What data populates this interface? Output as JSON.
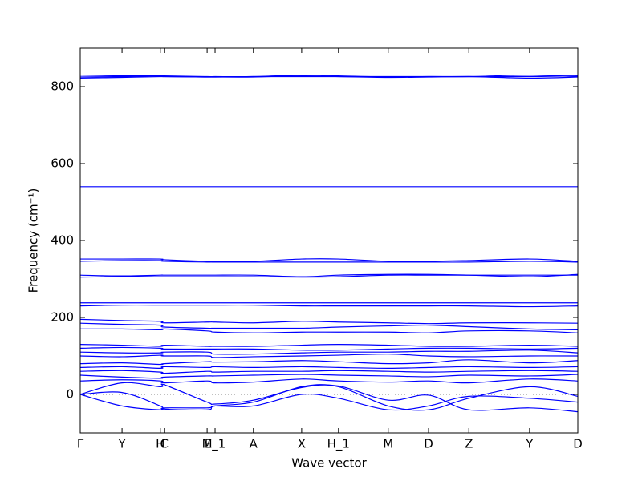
{
  "chart_data": {
    "type": "bands",
    "xlabel": "Wave vector",
    "ylabel": "Frequency (cm⁻¹)",
    "color": "#0000ff",
    "xlim": [
      0,
      1
    ],
    "ylim": [
      -100,
      900
    ],
    "yticks": [
      0,
      200,
      400,
      600,
      800
    ],
    "xticks": [
      {
        "value": 0,
        "label": "Γ"
      },
      {
        "value": 0.084,
        "label": "Y"
      },
      {
        "value": 0.161,
        "label": "H"
      },
      {
        "value": 0.169,
        "label": "C"
      },
      {
        "value": 0.255,
        "label": "M"
      },
      {
        "value": 0.271,
        "label": "E_1"
      },
      {
        "value": 0.348,
        "label": "A"
      },
      {
        "value": 0.445,
        "label": "X"
      },
      {
        "value": 0.519,
        "label": "H_1"
      },
      {
        "value": 0.619,
        "label": "M"
      },
      {
        "value": 0.7,
        "label": "D"
      },
      {
        "value": 0.781,
        "label": "Z"
      },
      {
        "value": 0.903,
        "label": "Y"
      },
      {
        "value": 1,
        "label": "D"
      }
    ],
    "zero_line": true,
    "x": [
      0,
      0.084,
      0.161,
      0.169,
      0.255,
      0.271,
      0.348,
      0.445,
      0.519,
      0.619,
      0.7,
      0.781,
      0.903,
      1
    ],
    "bands": [
      [
        830,
        828,
        828,
        828,
        826,
        826,
        826,
        830,
        828,
        825,
        826,
        826,
        830,
        826
      ],
      [
        825,
        826,
        828,
        826,
        825,
        825,
        825,
        828,
        826,
        824,
        825,
        826,
        822,
        825
      ],
      [
        822,
        824,
        826,
        826,
        825,
        825,
        826,
        826,
        826,
        826,
        826,
        826,
        826,
        828
      ],
      [
        540,
        540,
        540,
        540,
        540,
        540,
        540,
        540,
        540,
        540,
        540,
        540,
        540,
        540
      ],
      [
        352,
        352,
        352,
        350,
        346,
        346,
        346,
        352,
        352,
        346,
        346,
        348,
        352,
        346
      ],
      [
        346,
        348,
        348,
        346,
        344,
        344,
        344,
        344,
        344,
        344,
        344,
        344,
        346,
        344
      ],
      [
        310,
        308,
        310,
        310,
        310,
        310,
        310,
        306,
        310,
        312,
        312,
        310,
        306,
        312
      ],
      [
        305,
        306,
        306,
        306,
        306,
        306,
        306,
        305,
        306,
        310,
        310,
        310,
        310,
        310
      ],
      [
        238,
        238,
        238,
        238,
        238,
        238,
        238,
        238,
        238,
        238,
        238,
        238,
        238,
        238
      ],
      [
        230,
        232,
        232,
        232,
        232,
        232,
        232,
        230,
        230,
        230,
        230,
        230,
        228,
        230
      ],
      [
        195,
        192,
        190,
        186,
        188,
        188,
        186,
        190,
        188,
        186,
        184,
        186,
        186,
        185
      ],
      [
        185,
        182,
        180,
        175,
        172,
        172,
        172,
        172,
        175,
        178,
        180,
        176,
        170,
        168
      ],
      [
        170,
        170,
        168,
        170,
        165,
        162,
        160,
        162,
        162,
        162,
        160,
        165,
        165,
        160
      ],
      [
        130,
        128,
        125,
        128,
        125,
        125,
        125,
        128,
        130,
        128,
        125,
        125,
        128,
        125
      ],
      [
        120,
        122,
        120,
        118,
        118,
        118,
        118,
        115,
        115,
        118,
        120,
        120,
        118,
        120
      ],
      [
        110,
        108,
        108,
        110,
        110,
        105,
        105,
        108,
        110,
        110,
        112,
        112,
        115,
        108
      ],
      [
        100,
        98,
        102,
        100,
        100,
        96,
        98,
        100,
        102,
        105,
        100,
        98,
        100,
        100
      ],
      [
        80,
        82,
        78,
        80,
        85,
        84,
        85,
        88,
        85,
        80,
        82,
        90,
        82,
        88
      ],
      [
        70,
        72,
        68,
        72,
        70,
        72,
        70,
        72,
        70,
        68,
        70,
        72,
        70,
        72
      ],
      [
        60,
        62,
        58,
        55,
        60,
        58,
        60,
        60,
        62,
        60,
        58,
        60,
        62,
        60
      ],
      [
        50,
        45,
        42,
        45,
        48,
        48,
        50,
        52,
        50,
        48,
        46,
        50,
        48,
        52
      ],
      [
        35,
        38,
        35,
        30,
        35,
        30,
        32,
        40,
        35,
        32,
        35,
        30,
        40,
        35
      ],
      [
        0,
        30,
        20,
        25,
        -20,
        -25,
        -15,
        18,
        22,
        -15,
        -2,
        -40,
        -35,
        -45
      ],
      [
        0,
        5,
        -30,
        -38,
        -40,
        -30,
        -20,
        20,
        20,
        -30,
        -40,
        -10,
        20,
        -5
      ],
      [
        0,
        -30,
        -40,
        -35,
        -35,
        -30,
        -30,
        0,
        -10,
        -40,
        -30,
        -5,
        -10,
        -20
      ]
    ]
  }
}
